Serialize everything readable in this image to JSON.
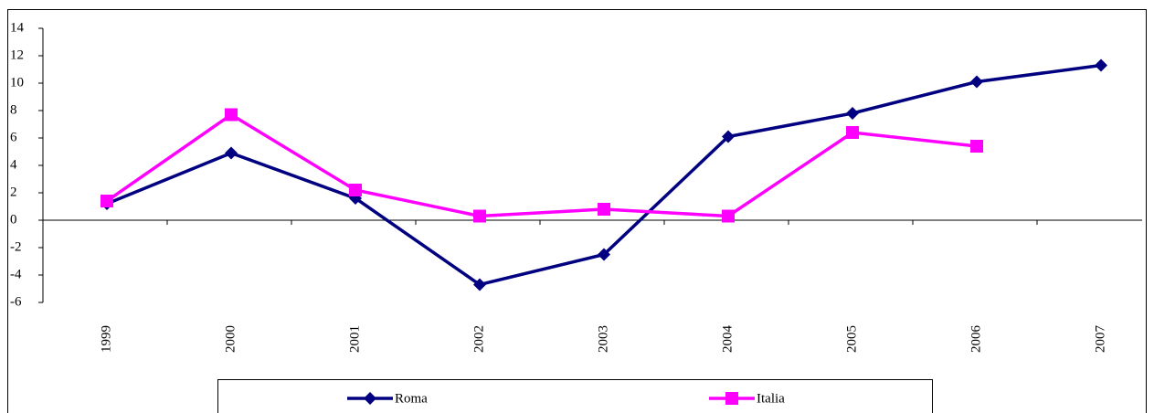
{
  "chart_data": {
    "type": "line",
    "categories": [
      "1999",
      "2000",
      "2001",
      "2002",
      "2003",
      "2004",
      "2005",
      "2006",
      "2007"
    ],
    "series": [
      {
        "name": "Roma",
        "color": "#000080",
        "marker": "diamond",
        "values": [
          1.2,
          4.9,
          1.6,
          -4.7,
          -2.5,
          6.1,
          7.8,
          10.1,
          11.3
        ]
      },
      {
        "name": "Italia",
        "color": "#ff00ff",
        "marker": "square",
        "values": [
          1.4,
          7.7,
          2.2,
          0.3,
          0.8,
          0.3,
          6.4,
          5.4,
          null
        ]
      }
    ],
    "ylim": [
      -6,
      14
    ],
    "yticks": [
      -6,
      -4,
      -2,
      0,
      2,
      4,
      6,
      8,
      10,
      12,
      14
    ],
    "grid": false,
    "legend": "bottom"
  }
}
